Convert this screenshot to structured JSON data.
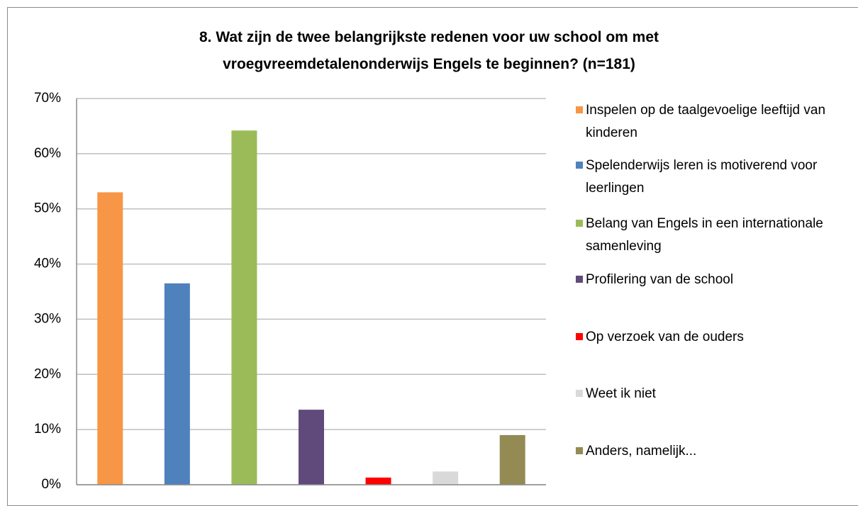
{
  "chart_data": {
    "type": "bar",
    "title": "8. Wat zijn de twee belangrijkste redenen voor uw school om met vroegvreemdetalenonderwijs Engels te beginnen? (n=181)",
    "categories": [
      null
    ],
    "series": [
      {
        "name": "Inspelen op de taalgevoelige leeftijd van kinderen",
        "color": "#f79646",
        "values": [
          53
        ]
      },
      {
        "name": "Spelenderwijs leren is motiverend voor leerlingen",
        "color": "#4f81bd",
        "values": [
          36.5
        ]
      },
      {
        "name": "Belang van Engels in een internationale samenleving",
        "color": "#9bbb59",
        "values": [
          64.2
        ]
      },
      {
        "name": "Profilering van de school",
        "color": "#604a7b",
        "values": [
          13.6
        ]
      },
      {
        "name": "Op verzoek van de ouders",
        "color": "#ff0000",
        "values": [
          1.3
        ]
      },
      {
        "name": "Weet ik niet",
        "color": "#d9d9d9",
        "values": [
          2.4
        ]
      },
      {
        "name": "Anders, namelijk...",
        "color": "#948a54",
        "values": [
          9
        ]
      }
    ],
    "ylim": [
      0,
      70
    ],
    "yticks": [
      {
        "value": 0,
        "label": "0%"
      },
      {
        "value": 10,
        "label": "10%"
      },
      {
        "value": 20,
        "label": "20%"
      },
      {
        "value": 30,
        "label": "30%"
      },
      {
        "value": 40,
        "label": "40%"
      },
      {
        "value": 50,
        "label": "50%"
      },
      {
        "value": 60,
        "label": "60%"
      },
      {
        "value": 70,
        "label": "70%"
      }
    ],
    "grid": true,
    "legend": "right"
  }
}
